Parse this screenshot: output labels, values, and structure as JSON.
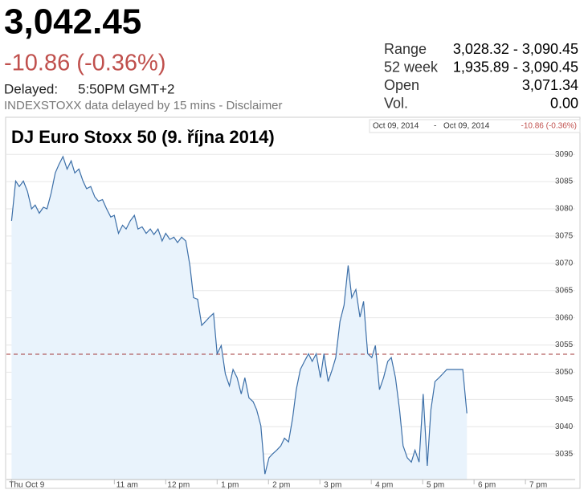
{
  "header": {
    "price": "3,042.45",
    "change": "-10.86 (-0.36%)",
    "delayed_label": "Delayed:",
    "delayed_time": "5:50PM GMT+2",
    "disclaimer": "INDEXSTOXX data delayed by 15 mins - Disclaimer"
  },
  "stats": [
    {
      "label": "Range",
      "value": "3,028.32 - 3,090.45"
    },
    {
      "label": "52 week",
      "value": "1,935.89 - 3,090.45"
    },
    {
      "label": "Open",
      "value": "3,071.34"
    },
    {
      "label": "Vol.",
      "value": "0.00"
    }
  ],
  "chart_data": {
    "type": "area",
    "title": "DJ Euro Stoxx 50 (9. října 2014)",
    "range": {
      "from": "Oct 09, 2014",
      "separator": "-",
      "to": "Oct 09, 2014",
      "change": "-10.86 (-0.36%)"
    },
    "color": "#3c6fa8",
    "fill": "#e9f3fc",
    "reference_line": 3053.31,
    "reference_color": "#a33a3a",
    "grid": true,
    "x": [
      9.0,
      9.08,
      9.15,
      9.23,
      9.31,
      9.39,
      9.46,
      9.54,
      9.62,
      9.69,
      9.77,
      9.85,
      9.92,
      10.0,
      10.08,
      10.16,
      10.23,
      10.31,
      10.39,
      10.46,
      10.54,
      10.62,
      10.69,
      10.77,
      10.85,
      10.93,
      11.0,
      11.08,
      11.16,
      11.23,
      11.31,
      11.39,
      11.46,
      11.54,
      11.62,
      11.7,
      11.77,
      11.85,
      11.93,
      12.0,
      12.08,
      12.16,
      12.23,
      12.31,
      12.39,
      12.47,
      12.54,
      12.62,
      12.7,
      12.77,
      12.85,
      12.93,
      13.0,
      13.08,
      13.16,
      13.24,
      13.31,
      13.39,
      13.47,
      13.54,
      13.62,
      13.7,
      13.77,
      13.85,
      13.93,
      14.01,
      14.08,
      14.16,
      14.24,
      14.31,
      14.39,
      14.47,
      14.54,
      14.62,
      14.7,
      14.78,
      14.85,
      14.93,
      15.01,
      15.08,
      15.16,
      15.24,
      15.31,
      15.39,
      15.47,
      15.55,
      15.62,
      15.7,
      15.78,
      15.85,
      15.93,
      16.01,
      16.08,
      16.16,
      16.24,
      16.32,
      16.39,
      16.47,
      16.55,
      16.62,
      16.7,
      16.78,
      16.85,
      16.93,
      17.01,
      17.09,
      17.16,
      17.24,
      17.32,
      17.39,
      17.47,
      17.55,
      17.62,
      17.7,
      17.78,
      17.86
    ],
    "values": [
      3077.8,
      3085.1,
      3084.1,
      3085.1,
      3083.2,
      3080.0,
      3080.7,
      3079.2,
      3080.3,
      3080.0,
      3082.9,
      3086.6,
      3088.1,
      3089.6,
      3087.3,
      3088.8,
      3086.6,
      3087.3,
      3085.1,
      3083.7,
      3084.1,
      3082.2,
      3081.4,
      3081.7,
      3080.0,
      3078.5,
      3078.8,
      3075.5,
      3077.0,
      3076.3,
      3077.8,
      3078.8,
      3076.3,
      3076.7,
      3075.5,
      3076.3,
      3075.3,
      3076.3,
      3074.1,
      3075.5,
      3074.4,
      3074.8,
      3073.8,
      3074.8,
      3074.1,
      3069.6,
      3063.7,
      3063.4,
      3058.6,
      3059.3,
      3060.1,
      3060.8,
      3053.4,
      3054.9,
      3049.7,
      3047.5,
      3050.5,
      3049.0,
      3046.0,
      3049.0,
      3045.3,
      3044.6,
      3043.1,
      3040.2,
      3031.3,
      3034.3,
      3035.0,
      3035.7,
      3036.5,
      3037.9,
      3037.2,
      3041.6,
      3046.8,
      3050.5,
      3052.0,
      3053.4,
      3052.0,
      3053.4,
      3049.0,
      3053.4,
      3048.3,
      3050.5,
      3052.7,
      3059.3,
      3062.3,
      3069.6,
      3063.7,
      3065.2,
      3060.1,
      3063.0,
      3053.4,
      3052.7,
      3054.9,
      3046.8,
      3049.0,
      3052.0,
      3052.7,
      3049.0,
      3043.1,
      3036.5,
      3034.3,
      3033.5,
      3035.7,
      3033.5,
      3046.0,
      3032.8,
      3043.1,
      3048.3,
      3049.0,
      3049.7,
      3050.5,
      3050.5,
      3050.5,
      3050.5,
      3050.5,
      3042.45
    ],
    "xlim": [
      8.9,
      19.53
    ],
    "xticks": [
      {
        "value": 9,
        "label": "Thu Oct 9"
      },
      {
        "value": 11,
        "label": "11 am"
      },
      {
        "value": 12,
        "label": "12 pm"
      },
      {
        "value": 13,
        "label": "1 pm"
      },
      {
        "value": 14,
        "label": "2 pm"
      },
      {
        "value": 15,
        "label": "3 pm"
      },
      {
        "value": 16,
        "label": "4 pm"
      },
      {
        "value": 17,
        "label": "5 pm"
      },
      {
        "value": 18,
        "label": "6 pm"
      },
      {
        "value": 19,
        "label": "7 pm"
      }
    ],
    "ylim": [
      3030.3,
      3091.8
    ],
    "yticks": [
      3035,
      3040,
      3045,
      3050,
      3055,
      3060,
      3065,
      3070,
      3075,
      3080,
      3085,
      3090
    ]
  }
}
